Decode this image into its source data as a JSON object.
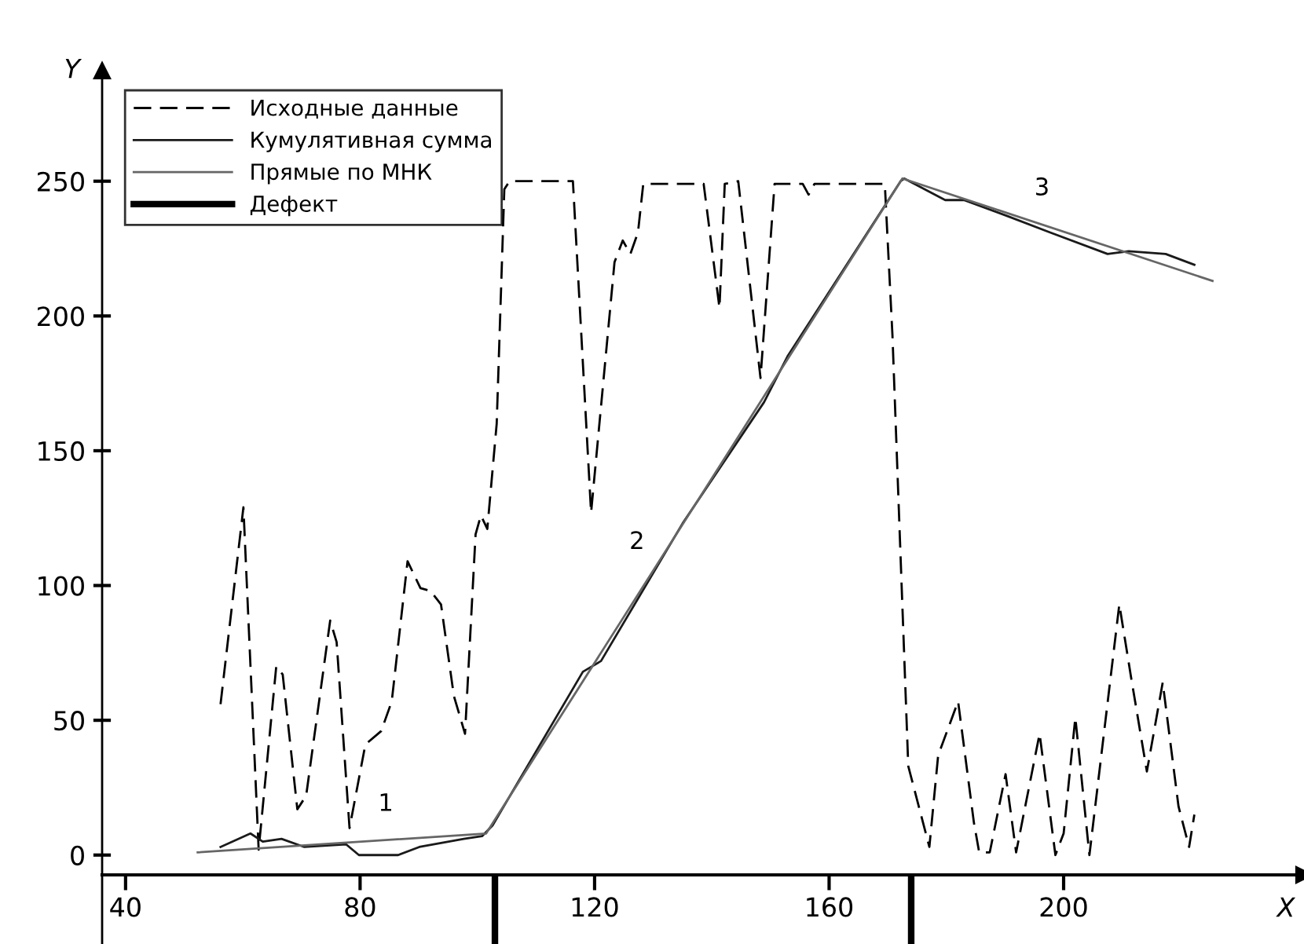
{
  "chart_data": {
    "type": "line",
    "xlabel": "X",
    "ylabel": "Y",
    "xlim": [
      36,
      241
    ],
    "ylim": [
      -33,
      291
    ],
    "xticks": [
      40,
      80,
      120,
      160,
      200
    ],
    "yticks": [
      0,
      50,
      100,
      150,
      200,
      250
    ],
    "legend": "top left",
    "marker": "none",
    "series": [
      {
        "name": "Исходные данные",
        "color": "#000000",
        "line_style": "dashed",
        "x": [
          56.2,
          60.1,
          62.7,
          65.7,
          66.8,
          69.3,
          70.8,
          74.9,
          76,
          78.2,
          80.9,
          83.6,
          85.4,
          88.1,
          90.3,
          92,
          93.8,
          96,
          97.9,
          99.7,
          100.6,
          101.7,
          103.3,
          104.6,
          105.5,
          116.3,
          119.4,
          123.4,
          124.8,
          126.1,
          127.4,
          128.3,
          138.6,
          141.3,
          142.2,
          144.5,
          148.3,
          150.7,
          155.5,
          156.5,
          157.5,
          169.5,
          170.8,
          173.5,
          177.1,
          178.6,
          182,
          184.7,
          185.6,
          187.4,
          190.1,
          191.9,
          195.9,
          198.6,
          200,
          202,
          204.4,
          209.5,
          211.5,
          214.2,
          216.9,
          219.6,
          221.4,
          222.3
        ],
        "values": [
          56,
          129,
          2,
          70,
          67,
          17,
          22,
          87,
          79,
          10,
          41,
          46,
          57,
          109,
          99,
          98,
          93,
          59,
          45,
          119,
          126,
          121,
          160,
          247,
          250,
          250,
          127,
          220,
          228,
          223,
          231,
          249,
          249,
          203,
          249,
          250,
          177,
          249,
          249,
          245,
          249,
          249,
          193,
          33,
          3,
          37,
          57,
          12,
          1,
          1,
          30,
          1,
          45,
          0,
          8,
          51,
          0,
          93,
          66,
          31,
          64,
          18,
          3,
          15
        ]
      },
      {
        "name": "Кумулятивная сумма",
        "color": "#1a1a1a",
        "line_style": "solid",
        "x": [
          56.2,
          61.3,
          63.4,
          66.6,
          70.5,
          77.6,
          79.8,
          86.5,
          90.1,
          97.7,
          100.8,
          102.6,
          118,
          121.1,
          135,
          148.9,
          152.9,
          172.2,
          172.8,
          179.8,
          183,
          190.5,
          197.7,
          207.5,
          211.1,
          217.4,
          222.3
        ],
        "values": [
          3,
          8,
          5,
          6,
          3,
          4,
          0,
          0,
          3,
          6,
          7,
          11,
          68,
          72,
          123,
          168,
          185,
          250,
          251,
          243,
          243,
          237,
          231,
          223,
          224,
          223,
          219
        ]
      },
      {
        "name": "Прямые по МНК",
        "color": "#666666",
        "line_style": "solid",
        "x": [
          52.3,
          101.5,
          172.5,
          225.4
        ],
        "values": [
          1,
          8,
          251,
          213
        ]
      },
      {
        "name": "Дефект",
        "color": "#000000",
        "line_style": "solid",
        "x": [
          103,
          103
        ],
        "values": [
          -8,
          -33
        ]
      },
      {
        "color": "#000000",
        "line_style": "solid",
        "x": [
          174,
          174
        ],
        "values": [
          -8,
          -33
        ]
      }
    ],
    "annotations": [
      "1",
      "2",
      "3"
    ]
  }
}
